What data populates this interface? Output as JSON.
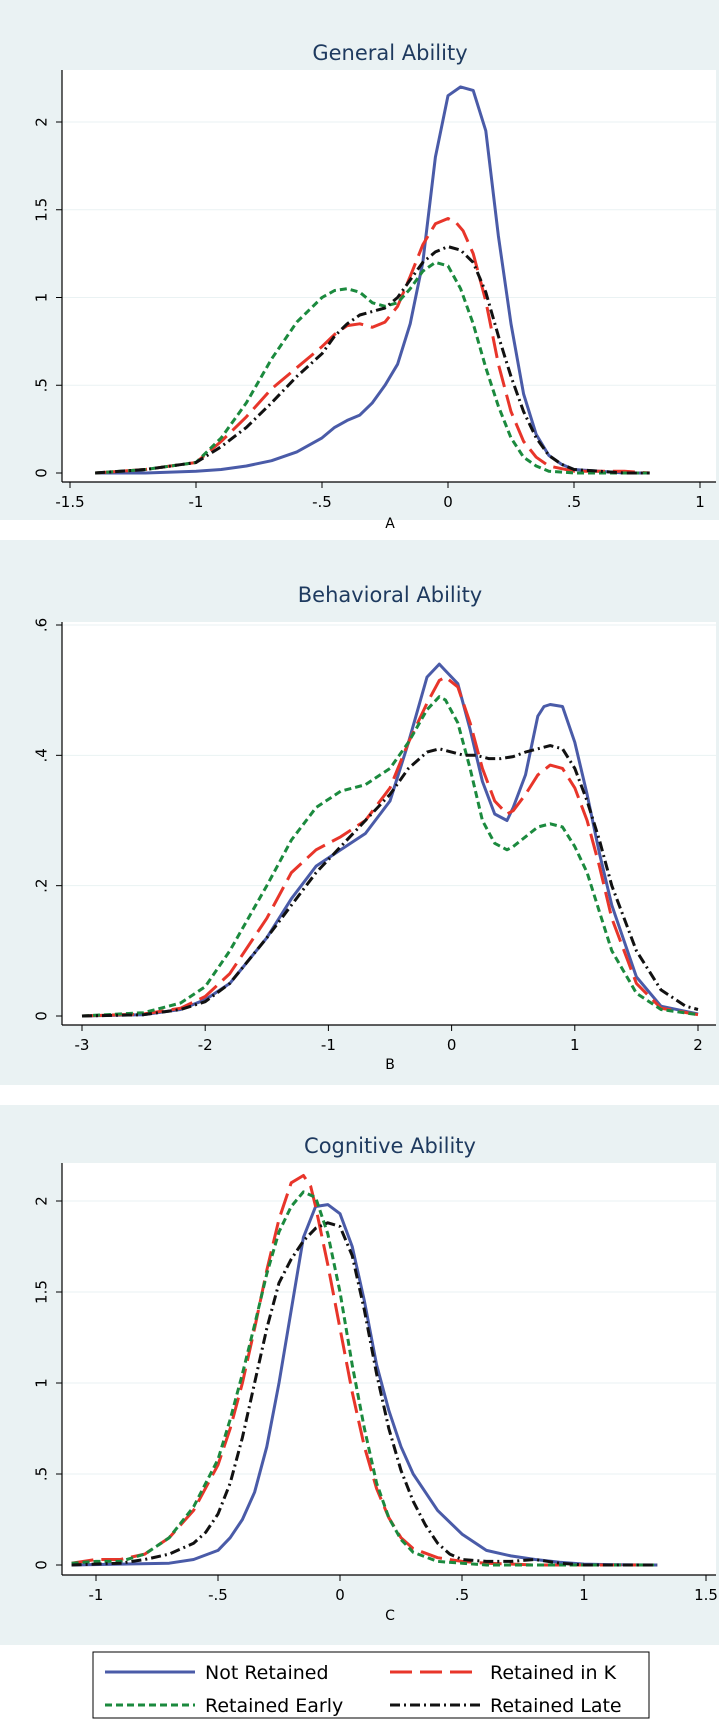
{
  "colors": {
    "not_retained": "#4a5ba8",
    "retained_in_k": "#e8352a",
    "retained_early": "#1b8a3e",
    "retained_late": "#111111"
  },
  "legend": {
    "position": "bottom",
    "entries": [
      {
        "label": "Not Retained",
        "series": "not_retained",
        "dash": "solid"
      },
      {
        "label": "Retained in K",
        "series": "retained_in_k",
        "dash": "longdash"
      },
      {
        "label": "Retained Early",
        "series": "retained_early",
        "dash": "shortdash"
      },
      {
        "label": "Retained Late",
        "series": "retained_late",
        "dash": "dashdot"
      }
    ]
  },
  "chart_data": [
    {
      "type": "line",
      "title": "General Ability",
      "xlabel": "A",
      "xlim": [
        -1.5,
        1.0
      ],
      "ylim": [
        0,
        2.2
      ],
      "xticks": [
        -1.5,
        -1,
        -0.5,
        0,
        0.5,
        1
      ],
      "xtick_labels": [
        "-1.5",
        "-1",
        "-.5",
        "0",
        ".5",
        "1"
      ],
      "yticks": [
        0,
        0.5,
        1,
        1.5,
        2
      ],
      "ytick_labels": [
        "0",
        ".5",
        "1",
        "1.5",
        "2"
      ],
      "grid": true,
      "series": [
        {
          "key": "not_retained",
          "name": "Not Retained",
          "x": [
            -1.4,
            -1.2,
            -1.0,
            -0.9,
            -0.8,
            -0.7,
            -0.6,
            -0.5,
            -0.45,
            -0.4,
            -0.35,
            -0.3,
            -0.25,
            -0.2,
            -0.15,
            -0.1,
            -0.05,
            0.0,
            0.05,
            0.1,
            0.15,
            0.2,
            0.25,
            0.3,
            0.35,
            0.4,
            0.45,
            0.5,
            0.6,
            0.7,
            0.8
          ],
          "y": [
            0,
            0,
            0.01,
            0.02,
            0.04,
            0.07,
            0.12,
            0.2,
            0.26,
            0.3,
            0.33,
            0.4,
            0.5,
            0.62,
            0.85,
            1.2,
            1.8,
            2.15,
            2.2,
            2.18,
            1.95,
            1.35,
            0.85,
            0.45,
            0.22,
            0.1,
            0.05,
            0.02,
            0.01,
            0,
            0
          ]
        },
        {
          "key": "retained_in_k",
          "name": "Retained in K",
          "x": [
            -1.4,
            -1.2,
            -1.0,
            -0.9,
            -0.8,
            -0.7,
            -0.6,
            -0.5,
            -0.45,
            -0.4,
            -0.35,
            -0.3,
            -0.25,
            -0.2,
            -0.15,
            -0.1,
            -0.05,
            0.0,
            0.03,
            0.06,
            0.1,
            0.15,
            0.2,
            0.25,
            0.3,
            0.35,
            0.4,
            0.5,
            0.6,
            0.7,
            0.8
          ],
          "y": [
            0,
            0.02,
            0.06,
            0.18,
            0.32,
            0.48,
            0.6,
            0.72,
            0.79,
            0.84,
            0.85,
            0.83,
            0.86,
            0.95,
            1.12,
            1.3,
            1.42,
            1.45,
            1.43,
            1.38,
            1.25,
            0.98,
            0.62,
            0.35,
            0.18,
            0.09,
            0.04,
            0.01,
            0.01,
            0.01,
            0
          ]
        },
        {
          "key": "retained_early",
          "name": "Retained Early",
          "x": [
            -1.4,
            -1.2,
            -1.0,
            -0.9,
            -0.8,
            -0.7,
            -0.6,
            -0.5,
            -0.45,
            -0.4,
            -0.35,
            -0.3,
            -0.25,
            -0.2,
            -0.15,
            -0.1,
            -0.05,
            0.0,
            0.05,
            0.1,
            0.15,
            0.2,
            0.25,
            0.3,
            0.35,
            0.4,
            0.5,
            0.6,
            0.7,
            0.8
          ],
          "y": [
            0,
            0.02,
            0.06,
            0.2,
            0.4,
            0.65,
            0.86,
            1.0,
            1.04,
            1.05,
            1.03,
            0.97,
            0.95,
            0.97,
            1.05,
            1.15,
            1.2,
            1.18,
            1.05,
            0.85,
            0.6,
            0.38,
            0.2,
            0.09,
            0.04,
            0.01,
            0,
            0,
            0,
            0
          ]
        },
        {
          "key": "retained_late",
          "name": "Retained Late",
          "x": [
            -1.4,
            -1.2,
            -1.0,
            -0.9,
            -0.8,
            -0.7,
            -0.6,
            -0.5,
            -0.45,
            -0.4,
            -0.35,
            -0.3,
            -0.25,
            -0.2,
            -0.15,
            -0.1,
            -0.05,
            0.0,
            0.05,
            0.1,
            0.15,
            0.2,
            0.25,
            0.3,
            0.35,
            0.4,
            0.45,
            0.5,
            0.6,
            0.7,
            0.8
          ],
          "y": [
            0,
            0.02,
            0.06,
            0.15,
            0.26,
            0.4,
            0.55,
            0.68,
            0.78,
            0.85,
            0.9,
            0.92,
            0.94,
            1.0,
            1.1,
            1.2,
            1.26,
            1.29,
            1.27,
            1.2,
            1.03,
            0.78,
            0.55,
            0.35,
            0.2,
            0.1,
            0.05,
            0.02,
            0.01,
            0,
            0
          ]
        }
      ]
    },
    {
      "type": "line",
      "title": "Behavioral Ability",
      "xlabel": "B",
      "xlim": [
        -3,
        2
      ],
      "ylim": [
        0,
        0.6
      ],
      "xticks": [
        -3,
        -2,
        -1,
        0,
        1,
        2
      ],
      "xtick_labels": [
        "-3",
        "-2",
        "-1",
        "0",
        "1",
        "2"
      ],
      "yticks": [
        0,
        0.2,
        0.4,
        0.6
      ],
      "ytick_labels": [
        "0",
        ".2",
        ".4",
        ".6"
      ],
      "grid": true,
      "series": [
        {
          "key": "not_retained",
          "name": "Not Retained",
          "x": [
            -3,
            -2.5,
            -2.2,
            -2.0,
            -1.8,
            -1.5,
            -1.3,
            -1.1,
            -0.9,
            -0.7,
            -0.5,
            -0.35,
            -0.2,
            -0.1,
            -0.05,
            0.05,
            0.15,
            0.25,
            0.35,
            0.45,
            0.5,
            0.6,
            0.7,
            0.75,
            0.8,
            0.9,
            1.0,
            1.1,
            1.2,
            1.3,
            1.5,
            1.7,
            2.0
          ],
          "y": [
            0,
            0.002,
            0.01,
            0.025,
            0.05,
            0.12,
            0.18,
            0.23,
            0.255,
            0.28,
            0.33,
            0.42,
            0.52,
            0.54,
            0.53,
            0.51,
            0.44,
            0.36,
            0.31,
            0.3,
            0.32,
            0.37,
            0.46,
            0.475,
            0.478,
            0.475,
            0.42,
            0.34,
            0.25,
            0.17,
            0.06,
            0.015,
            0.003
          ]
        },
        {
          "key": "retained_in_k",
          "name": "Retained in K",
          "x": [
            -3,
            -2.5,
            -2.2,
            -2.0,
            -1.8,
            -1.5,
            -1.3,
            -1.1,
            -0.9,
            -0.7,
            -0.5,
            -0.35,
            -0.2,
            -0.1,
            -0.05,
            0.05,
            0.15,
            0.25,
            0.35,
            0.45,
            0.5,
            0.6,
            0.7,
            0.8,
            0.9,
            1.0,
            1.1,
            1.2,
            1.3,
            1.5,
            1.7,
            2.0
          ],
          "y": [
            0,
            0.003,
            0.012,
            0.03,
            0.065,
            0.15,
            0.22,
            0.255,
            0.275,
            0.3,
            0.35,
            0.42,
            0.48,
            0.515,
            0.52,
            0.505,
            0.45,
            0.38,
            0.33,
            0.31,
            0.315,
            0.34,
            0.37,
            0.385,
            0.38,
            0.35,
            0.3,
            0.23,
            0.15,
            0.05,
            0.012,
            0.002
          ]
        },
        {
          "key": "retained_early",
          "name": "Retained Early",
          "x": [
            -3,
            -2.5,
            -2.2,
            -2.0,
            -1.8,
            -1.5,
            -1.3,
            -1.1,
            -0.9,
            -0.7,
            -0.5,
            -0.35,
            -0.2,
            -0.1,
            -0.05,
            0.05,
            0.15,
            0.25,
            0.35,
            0.45,
            0.5,
            0.6,
            0.7,
            0.8,
            0.9,
            1.0,
            1.1,
            1.2,
            1.3,
            1.5,
            1.7,
            2.0
          ],
          "y": [
            0,
            0.005,
            0.02,
            0.045,
            0.1,
            0.2,
            0.27,
            0.32,
            0.345,
            0.355,
            0.38,
            0.42,
            0.47,
            0.49,
            0.485,
            0.45,
            0.38,
            0.3,
            0.265,
            0.255,
            0.26,
            0.275,
            0.29,
            0.295,
            0.29,
            0.26,
            0.22,
            0.16,
            0.1,
            0.035,
            0.01,
            0.002
          ]
        },
        {
          "key": "retained_late",
          "name": "Retained Late",
          "x": [
            -3,
            -2.5,
            -2.2,
            -2.0,
            -1.8,
            -1.5,
            -1.3,
            -1.1,
            -0.9,
            -0.7,
            -0.5,
            -0.35,
            -0.2,
            -0.1,
            0.0,
            0.1,
            0.2,
            0.3,
            0.4,
            0.5,
            0.6,
            0.7,
            0.8,
            0.9,
            1.0,
            1.1,
            1.2,
            1.3,
            1.5,
            1.7,
            1.9,
            2.0
          ],
          "y": [
            0,
            0.002,
            0.01,
            0.022,
            0.05,
            0.12,
            0.17,
            0.22,
            0.26,
            0.3,
            0.34,
            0.38,
            0.405,
            0.41,
            0.405,
            0.4,
            0.4,
            0.395,
            0.395,
            0.398,
            0.405,
            0.41,
            0.415,
            0.41,
            0.38,
            0.33,
            0.27,
            0.2,
            0.1,
            0.04,
            0.015,
            0.01
          ]
        }
      ]
    },
    {
      "type": "line",
      "title": "Cognitive Ability",
      "xlabel": "C",
      "xlim": [
        -1.0,
        1.5
      ],
      "ylim": [
        0,
        2.15
      ],
      "xticks": [
        -1,
        -0.5,
        0,
        0.5,
        1,
        1.5
      ],
      "xtick_labels": [
        "-1",
        "-.5",
        "0",
        ".5",
        "1",
        "1.5"
      ],
      "yticks": [
        0,
        0.5,
        1,
        1.5,
        2
      ],
      "ytick_labels": [
        "0",
        ".5",
        "1",
        "1.5",
        "2"
      ],
      "grid": true,
      "series": [
        {
          "key": "not_retained",
          "name": "Not Retained",
          "x": [
            -1.1,
            -0.9,
            -0.7,
            -0.6,
            -0.5,
            -0.45,
            -0.4,
            -0.35,
            -0.3,
            -0.25,
            -0.2,
            -0.15,
            -0.1,
            -0.05,
            0.0,
            0.05,
            0.1,
            0.15,
            0.2,
            0.25,
            0.3,
            0.35,
            0.4,
            0.5,
            0.6,
            0.7,
            0.8,
            0.9,
            1.0,
            1.1,
            1.3
          ],
          "y": [
            0,
            0.005,
            0.01,
            0.03,
            0.08,
            0.15,
            0.25,
            0.4,
            0.65,
            1.0,
            1.4,
            1.8,
            1.97,
            1.98,
            1.93,
            1.75,
            1.45,
            1.1,
            0.85,
            0.65,
            0.5,
            0.4,
            0.3,
            0.17,
            0.08,
            0.05,
            0.03,
            0.015,
            0.005,
            0.002,
            0
          ]
        },
        {
          "key": "retained_in_k",
          "name": "Retained in K",
          "x": [
            -1.1,
            -1.0,
            -0.9,
            -0.8,
            -0.7,
            -0.6,
            -0.5,
            -0.45,
            -0.4,
            -0.35,
            -0.3,
            -0.25,
            -0.2,
            -0.15,
            -0.12,
            -0.1,
            -0.05,
            0.0,
            0.05,
            0.1,
            0.15,
            0.2,
            0.25,
            0.3,
            0.4,
            0.5,
            0.6,
            0.8,
            1.0,
            1.3
          ],
          "y": [
            0.01,
            0.03,
            0.03,
            0.06,
            0.15,
            0.3,
            0.55,
            0.75,
            1.0,
            1.3,
            1.62,
            1.9,
            2.1,
            2.14,
            2.08,
            1.97,
            1.65,
            1.3,
            0.95,
            0.65,
            0.42,
            0.26,
            0.15,
            0.09,
            0.04,
            0.02,
            0.01,
            0,
            0,
            0
          ]
        },
        {
          "key": "retained_early",
          "name": "Retained Early",
          "x": [
            -1.1,
            -1.0,
            -0.9,
            -0.8,
            -0.7,
            -0.6,
            -0.5,
            -0.45,
            -0.4,
            -0.35,
            -0.3,
            -0.25,
            -0.2,
            -0.15,
            -0.1,
            -0.05,
            0.0,
            0.05,
            0.1,
            0.15,
            0.2,
            0.25,
            0.3,
            0.4,
            0.5,
            0.6,
            0.8,
            1.0,
            1.3
          ],
          "y": [
            0.01,
            0.02,
            0.02,
            0.06,
            0.15,
            0.32,
            0.58,
            0.8,
            1.05,
            1.32,
            1.6,
            1.83,
            1.97,
            2.05,
            2.02,
            1.82,
            1.5,
            1.1,
            0.75,
            0.45,
            0.26,
            0.14,
            0.07,
            0.02,
            0.01,
            0,
            0,
            0,
            0
          ]
        },
        {
          "key": "retained_late",
          "name": "Retained Late",
          "x": [
            -1.1,
            -0.9,
            -0.8,
            -0.7,
            -0.6,
            -0.55,
            -0.5,
            -0.45,
            -0.4,
            -0.35,
            -0.3,
            -0.25,
            -0.2,
            -0.15,
            -0.1,
            -0.05,
            0.0,
            0.05,
            0.1,
            0.15,
            0.2,
            0.25,
            0.3,
            0.35,
            0.4,
            0.45,
            0.5,
            0.6,
            0.7,
            0.8,
            0.9,
            1.0,
            1.3
          ],
          "y": [
            0,
            0.01,
            0.03,
            0.06,
            0.12,
            0.18,
            0.28,
            0.45,
            0.7,
            1.0,
            1.3,
            1.55,
            1.68,
            1.78,
            1.85,
            1.88,
            1.86,
            1.7,
            1.4,
            1.05,
            0.75,
            0.52,
            0.35,
            0.22,
            0.12,
            0.06,
            0.03,
            0.02,
            0.02,
            0.03,
            0.01,
            0,
            0
          ]
        }
      ]
    }
  ]
}
